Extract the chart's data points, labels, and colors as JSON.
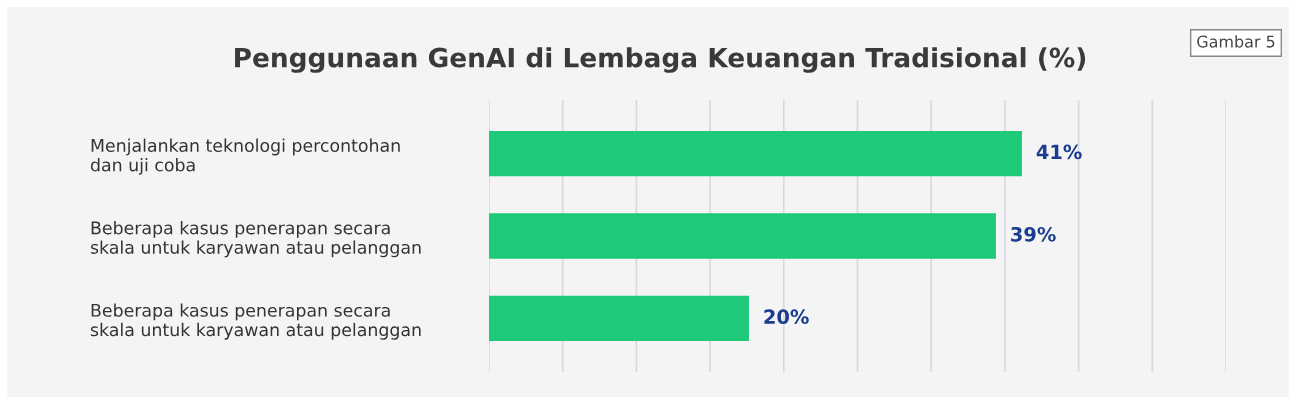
{
  "chart_data": {
    "type": "bar",
    "orientation": "horizontal",
    "title": "Penggunaan GenAI di Lembaga Keuangan Tradisional (%)",
    "categories": [
      "Menjalankan teknologi percontohan\ndan uji coba",
      "Beberapa kasus penerapan secara\nskala untuk karyawan atau pelanggan",
      "Beberapa kasus penerapan secara\nskala untuk karyawan atau pelanggan"
    ],
    "values": [
      41,
      39,
      20
    ],
    "value_labels": [
      "41%",
      "39%",
      "20%"
    ],
    "color": "#1fc97a",
    "xlim": [
      0,
      56.7
    ],
    "xticks": [
      {
        "value": 0,
        "label": null
      },
      {
        "value": 5.67,
        "label": null
      },
      {
        "value": 11.34,
        "label": null
      },
      {
        "value": 17.01,
        "label": null
      },
      {
        "value": 22.68,
        "label": null
      },
      {
        "value": 28.35,
        "label": null
      },
      {
        "value": 34.02,
        "label": null
      },
      {
        "value": 39.69,
        "label": null
      },
      {
        "value": 45.36,
        "label": null
      },
      {
        "value": 51.03,
        "label": null
      },
      {
        "value": 56.7,
        "label": null
      }
    ],
    "grid": "x",
    "tick_labels": "y",
    "annotations": [
      "Gambar 5"
    ]
  }
}
